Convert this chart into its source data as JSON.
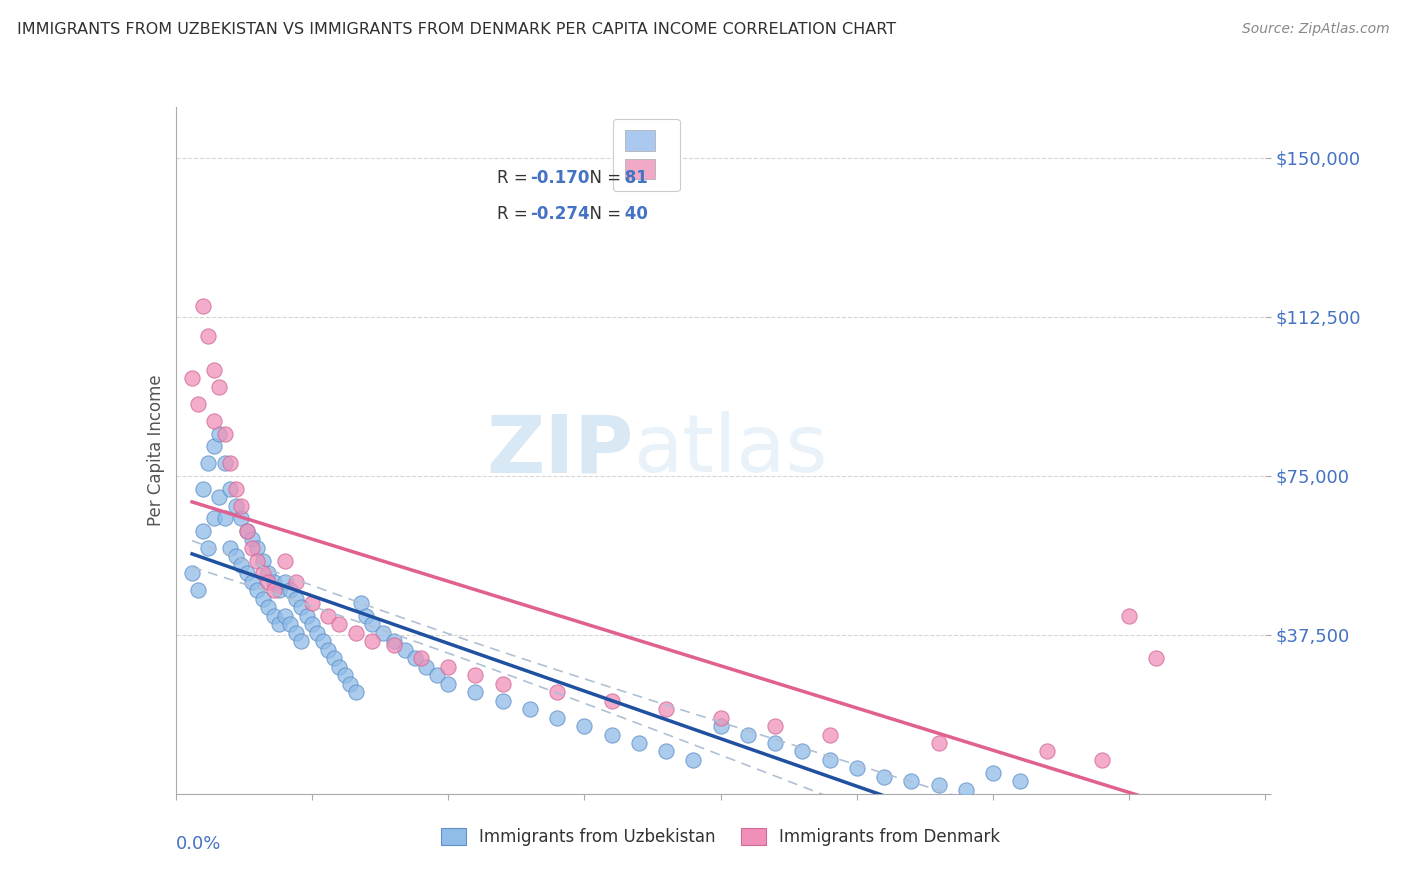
{
  "title": "IMMIGRANTS FROM UZBEKISTAN VS IMMIGRANTS FROM DENMARK PER CAPITA INCOME CORRELATION CHART",
  "source": "Source: ZipAtlas.com",
  "ylabel": "Per Capita Income",
  "xlim": [
    0.0,
    0.2
  ],
  "ylim": [
    0,
    162000
  ],
  "watermark_zip": "ZIP",
  "watermark_atlas": "atlas",
  "yticks": [
    0,
    37500,
    75000,
    112500,
    150000
  ],
  "ytick_labels": [
    "",
    "$37,500",
    "$75,000",
    "$112,500",
    "$150,000"
  ],
  "legend_entries": [
    {
      "label_black": "R = ",
      "label_blue": "-0.170",
      "label_black2": "   N = ",
      "label_blue2": " 81",
      "color": "#aac8f0"
    },
    {
      "label_black": "R = ",
      "label_blue": "-0.274",
      "label_black2": "   N = ",
      "label_blue2": " 40",
      "color": "#f0aac8"
    }
  ],
  "uz_color": "#90bce8",
  "uz_edge": "#6090c8",
  "dk_color": "#f090b8",
  "dk_edge": "#d06898",
  "reg_uz_color": "#2050a0",
  "reg_dk_color": "#e06090",
  "ci_color": "#b0c8e8",
  "grid_color": "#cccccc",
  "axis_blue": "#4472c4",
  "title_color": "#303030",
  "source_color": "#888888",
  "series_uzbekistan_x": [
    0.003,
    0.004,
    0.005,
    0.005,
    0.006,
    0.006,
    0.007,
    0.007,
    0.008,
    0.008,
    0.009,
    0.009,
    0.01,
    0.01,
    0.011,
    0.011,
    0.012,
    0.012,
    0.013,
    0.013,
    0.014,
    0.014,
    0.015,
    0.015,
    0.016,
    0.016,
    0.017,
    0.017,
    0.018,
    0.018,
    0.019,
    0.019,
    0.02,
    0.02,
    0.021,
    0.021,
    0.022,
    0.022,
    0.023,
    0.023,
    0.024,
    0.025,
    0.026,
    0.027,
    0.028,
    0.029,
    0.03,
    0.031,
    0.032,
    0.033,
    0.034,
    0.035,
    0.036,
    0.038,
    0.04,
    0.042,
    0.044,
    0.046,
    0.048,
    0.05,
    0.055,
    0.06,
    0.065,
    0.07,
    0.075,
    0.08,
    0.085,
    0.09,
    0.095,
    0.1,
    0.105,
    0.11,
    0.115,
    0.12,
    0.125,
    0.13,
    0.135,
    0.14,
    0.145,
    0.15,
    0.155
  ],
  "series_uzbekistan_y": [
    52000,
    48000,
    72000,
    62000,
    78000,
    58000,
    82000,
    65000,
    85000,
    70000,
    78000,
    65000,
    72000,
    58000,
    68000,
    56000,
    65000,
    54000,
    62000,
    52000,
    60000,
    50000,
    58000,
    48000,
    55000,
    46000,
    52000,
    44000,
    50000,
    42000,
    48000,
    40000,
    50000,
    42000,
    48000,
    40000,
    46000,
    38000,
    44000,
    36000,
    42000,
    40000,
    38000,
    36000,
    34000,
    32000,
    30000,
    28000,
    26000,
    24000,
    45000,
    42000,
    40000,
    38000,
    36000,
    34000,
    32000,
    30000,
    28000,
    26000,
    24000,
    22000,
    20000,
    18000,
    16000,
    14000,
    12000,
    10000,
    8000,
    16000,
    14000,
    12000,
    10000,
    8000,
    6000,
    4000,
    3000,
    2000,
    1000,
    5000,
    3000
  ],
  "series_denmark_x": [
    0.003,
    0.004,
    0.005,
    0.006,
    0.007,
    0.007,
    0.008,
    0.009,
    0.01,
    0.011,
    0.012,
    0.013,
    0.014,
    0.015,
    0.016,
    0.017,
    0.018,
    0.02,
    0.022,
    0.025,
    0.028,
    0.03,
    0.033,
    0.036,
    0.04,
    0.045,
    0.05,
    0.055,
    0.06,
    0.07,
    0.08,
    0.09,
    0.1,
    0.11,
    0.12,
    0.14,
    0.16,
    0.17,
    0.175,
    0.18
  ],
  "series_denmark_y": [
    98000,
    92000,
    115000,
    108000,
    100000,
    88000,
    96000,
    85000,
    78000,
    72000,
    68000,
    62000,
    58000,
    55000,
    52000,
    50000,
    48000,
    55000,
    50000,
    45000,
    42000,
    40000,
    38000,
    36000,
    35000,
    32000,
    30000,
    28000,
    26000,
    24000,
    22000,
    20000,
    18000,
    16000,
    14000,
    12000,
    10000,
    8000,
    42000,
    32000
  ]
}
